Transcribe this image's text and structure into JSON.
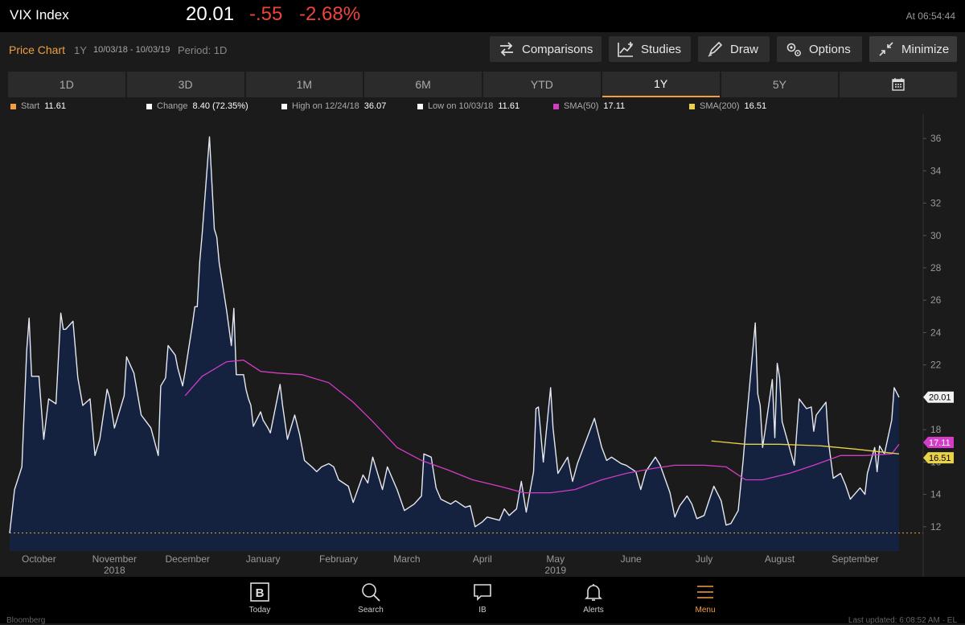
{
  "header": {
    "title": "VIX Index",
    "price": "20.01",
    "change": "-.55",
    "change_pct": "-2.68%",
    "time": "At 06:54:44"
  },
  "subheader": {
    "label": "Price Chart",
    "range": "1Y",
    "dates": "10/03/18 - 10/03/19",
    "period": "Period: 1D"
  },
  "toolbar": {
    "comparisons": "Comparisons",
    "studies": "Studies",
    "draw": "Draw",
    "options": "Options",
    "minimize": "Minimize"
  },
  "tabs": [
    "1D",
    "3D",
    "1M",
    "6M",
    "YTD",
    "1Y",
    "5Y"
  ],
  "active_tab": "1Y",
  "legend": {
    "start_label": "Start",
    "start_value": "11.61",
    "change_label": "Change",
    "change_value": "8.40 (72.35%)",
    "high_label": "High on 12/24/18",
    "high_value": "36.07",
    "low_label": "Low on 10/03/18",
    "low_value": "11.61",
    "sma50_label": "SMA(50)",
    "sma50_value": "17.11",
    "sma200_label": "SMA(200)",
    "sma200_value": "16.51"
  },
  "colors": {
    "accent": "#f39f41",
    "negative": "#f0443a",
    "area_fill": "#14213f",
    "price_line": "#e6e9f0",
    "sma50": "#d23cc6",
    "sma200": "#e9d14a"
  },
  "nav": {
    "today": "Today",
    "search": "Search",
    "ib": "IB",
    "alerts": "Alerts",
    "menu": "Menu"
  },
  "footer": {
    "left": "Bloomberg",
    "right": "Last updated: 6:08:52 AM · EL"
  },
  "chart_data": {
    "type": "area",
    "title": "VIX Index",
    "ylim": [
      10.5,
      37
    ],
    "y_ticks": [
      12,
      14,
      16,
      18,
      20,
      22,
      24,
      26,
      28,
      30,
      32,
      34,
      36
    ],
    "x_range": [
      "2018-10-03",
      "2019-10-03"
    ],
    "x_ticks": [
      {
        "date": "2018-10-15",
        "label": "October",
        "year": ""
      },
      {
        "date": "2018-11-15",
        "label": "November",
        "year": "2018"
      },
      {
        "date": "2018-12-15",
        "label": "December",
        "year": ""
      },
      {
        "date": "2019-01-15",
        "label": "January",
        "year": ""
      },
      {
        "date": "2019-02-15",
        "label": "February",
        "year": ""
      },
      {
        "date": "2019-03-15",
        "label": "March",
        "year": ""
      },
      {
        "date": "2019-04-15",
        "label": "April",
        "year": ""
      },
      {
        "date": "2019-05-15",
        "label": "May",
        "year": "2019"
      },
      {
        "date": "2019-06-15",
        "label": "June",
        "year": ""
      },
      {
        "date": "2019-07-15",
        "label": "July",
        "year": ""
      },
      {
        "date": "2019-08-15",
        "label": "August",
        "year": ""
      },
      {
        "date": "2019-09-15",
        "label": "September",
        "year": ""
      }
    ],
    "reference_line": {
      "value": 11.61
    },
    "last_value_labels": {
      "price": "20.01",
      "sma50": "17.11",
      "sma200": "16.51"
    },
    "series": [
      {
        "type": "area",
        "points": [
          [
            "2018-10-03",
            11.6
          ],
          [
            "2018-10-05",
            14.3
          ],
          [
            "2018-10-08",
            15.7
          ],
          [
            "2018-10-10",
            22.9
          ],
          [
            "2018-10-11",
            24.9
          ],
          [
            "2018-10-12",
            21.3
          ],
          [
            "2018-10-15",
            21.3
          ],
          [
            "2018-10-17",
            17.4
          ],
          [
            "2018-10-19",
            19.9
          ],
          [
            "2018-10-22",
            19.6
          ],
          [
            "2018-10-24",
            25.2
          ],
          [
            "2018-10-25",
            24.2
          ],
          [
            "2018-10-26",
            24.2
          ],
          [
            "2018-10-29",
            24.7
          ],
          [
            "2018-10-31",
            21.2
          ],
          [
            "2018-11-02",
            19.5
          ],
          [
            "2018-11-05",
            19.9
          ],
          [
            "2018-11-07",
            16.4
          ],
          [
            "2018-11-09",
            17.4
          ],
          [
            "2018-11-12",
            20.5
          ],
          [
            "2018-11-13",
            20.0
          ],
          [
            "2018-11-15",
            18.1
          ],
          [
            "2018-11-19",
            20.1
          ],
          [
            "2018-11-20",
            22.5
          ],
          [
            "2018-11-23",
            21.5
          ],
          [
            "2018-11-26",
            18.9
          ],
          [
            "2018-11-28",
            18.5
          ],
          [
            "2018-11-30",
            18.1
          ],
          [
            "2018-12-03",
            16.4
          ],
          [
            "2018-12-04",
            20.7
          ],
          [
            "2018-12-06",
            21.2
          ],
          [
            "2018-12-07",
            23.2
          ],
          [
            "2018-12-10",
            22.6
          ],
          [
            "2018-12-11",
            21.8
          ],
          [
            "2018-12-13",
            20.7
          ],
          [
            "2018-12-14",
            21.6
          ],
          [
            "2018-12-17",
            24.5
          ],
          [
            "2018-12-18",
            25.6
          ],
          [
            "2018-12-19",
            25.6
          ],
          [
            "2018-12-20",
            28.4
          ],
          [
            "2018-12-21",
            30.1
          ],
          [
            "2018-12-24",
            36.1
          ],
          [
            "2018-12-26",
            30.4
          ],
          [
            "2018-12-27",
            29.9
          ],
          [
            "2018-12-28",
            28.3
          ],
          [
            "2018-12-31",
            25.4
          ],
          [
            "2019-01-02",
            23.2
          ],
          [
            "2019-01-03",
            25.5
          ],
          [
            "2019-01-04",
            21.4
          ],
          [
            "2019-01-07",
            21.4
          ],
          [
            "2019-01-08",
            20.5
          ],
          [
            "2019-01-09",
            19.9
          ],
          [
            "2019-01-10",
            19.5
          ],
          [
            "2019-01-11",
            18.2
          ],
          [
            "2019-01-14",
            19.1
          ],
          [
            "2019-01-15",
            18.6
          ],
          [
            "2019-01-17",
            18.1
          ],
          [
            "2019-01-18",
            17.8
          ],
          [
            "2019-01-22",
            20.8
          ],
          [
            "2019-01-23",
            19.5
          ],
          [
            "2019-01-25",
            17.4
          ],
          [
            "2019-01-28",
            18.9
          ],
          [
            "2019-01-30",
            17.7
          ],
          [
            "2019-02-01",
            16.1
          ],
          [
            "2019-02-04",
            15.7
          ],
          [
            "2019-02-06",
            15.4
          ],
          [
            "2019-02-08",
            15.7
          ],
          [
            "2019-02-11",
            15.9
          ],
          [
            "2019-02-13",
            15.7
          ],
          [
            "2019-02-15",
            14.9
          ],
          [
            "2019-02-19",
            14.5
          ],
          [
            "2019-02-21",
            13.5
          ],
          [
            "2019-02-25",
            15.2
          ],
          [
            "2019-02-27",
            14.7
          ],
          [
            "2019-03-01",
            16.3
          ],
          [
            "2019-03-05",
            14.3
          ],
          [
            "2019-03-07",
            15.7
          ],
          [
            "2019-03-11",
            14.3
          ],
          [
            "2019-03-14",
            13.0
          ],
          [
            "2019-03-18",
            13.4
          ],
          [
            "2019-03-21",
            13.9
          ],
          [
            "2019-03-22",
            16.5
          ],
          [
            "2019-03-25",
            16.3
          ],
          [
            "2019-03-27",
            14.4
          ],
          [
            "2019-03-29",
            13.7
          ],
          [
            "2019-04-02",
            13.4
          ],
          [
            "2019-04-04",
            13.6
          ],
          [
            "2019-04-08",
            13.2
          ],
          [
            "2019-04-10",
            13.3
          ],
          [
            "2019-04-12",
            12.0
          ],
          [
            "2019-04-15",
            12.3
          ],
          [
            "2019-04-17",
            12.6
          ],
          [
            "2019-04-22",
            12.4
          ],
          [
            "2019-04-24",
            13.1
          ],
          [
            "2019-04-26",
            12.7
          ],
          [
            "2019-04-29",
            13.1
          ],
          [
            "2019-05-01",
            14.8
          ],
          [
            "2019-05-03",
            12.9
          ],
          [
            "2019-05-06",
            15.4
          ],
          [
            "2019-05-07",
            19.3
          ],
          [
            "2019-05-08",
            19.4
          ],
          [
            "2019-05-10",
            16.0
          ],
          [
            "2019-05-13",
            20.6
          ],
          [
            "2019-05-14",
            18.1
          ],
          [
            "2019-05-16",
            15.3
          ],
          [
            "2019-05-20",
            16.3
          ],
          [
            "2019-05-22",
            14.8
          ],
          [
            "2019-05-24",
            15.9
          ],
          [
            "2019-05-28",
            17.5
          ],
          [
            "2019-05-31",
            18.7
          ],
          [
            "2019-06-03",
            16.9
          ],
          [
            "2019-06-05",
            16.1
          ],
          [
            "2019-06-07",
            16.3
          ],
          [
            "2019-06-11",
            15.9
          ],
          [
            "2019-06-13",
            15.8
          ],
          [
            "2019-06-17",
            15.4
          ],
          [
            "2019-06-19",
            14.3
          ],
          [
            "2019-06-21",
            15.4
          ],
          [
            "2019-06-25",
            16.3
          ],
          [
            "2019-06-27",
            15.8
          ],
          [
            "2019-07-01",
            14.1
          ],
          [
            "2019-07-03",
            12.6
          ],
          [
            "2019-07-05",
            13.3
          ],
          [
            "2019-07-08",
            13.9
          ],
          [
            "2019-07-10",
            13.4
          ],
          [
            "2019-07-12",
            12.5
          ],
          [
            "2019-07-15",
            12.7
          ],
          [
            "2019-07-17",
            13.6
          ],
          [
            "2019-07-19",
            14.5
          ],
          [
            "2019-07-22",
            13.6
          ],
          [
            "2019-07-24",
            12.1
          ],
          [
            "2019-07-26",
            12.2
          ],
          [
            "2019-07-29",
            13.0
          ],
          [
            "2019-07-31",
            16.1
          ],
          [
            "2019-08-01",
            17.9
          ],
          [
            "2019-08-05",
            24.6
          ],
          [
            "2019-08-06",
            20.2
          ],
          [
            "2019-08-07",
            19.5
          ],
          [
            "2019-08-08",
            16.9
          ],
          [
            "2019-08-09",
            17.9
          ],
          [
            "2019-08-12",
            21.1
          ],
          [
            "2019-08-13",
            17.5
          ],
          [
            "2019-08-14",
            22.1
          ],
          [
            "2019-08-15",
            21.2
          ],
          [
            "2019-08-16",
            18.5
          ],
          [
            "2019-08-19",
            16.9
          ],
          [
            "2019-08-21",
            15.8
          ],
          [
            "2019-08-23",
            19.9
          ],
          [
            "2019-08-26",
            19.3
          ],
          [
            "2019-08-28",
            19.4
          ],
          [
            "2019-08-29",
            17.9
          ],
          [
            "2019-08-30",
            18.9
          ],
          [
            "2019-09-03",
            19.7
          ],
          [
            "2019-09-04",
            17.3
          ],
          [
            "2019-09-06",
            15.0
          ],
          [
            "2019-09-09",
            15.3
          ],
          [
            "2019-09-11",
            14.6
          ],
          [
            "2019-09-13",
            13.7
          ],
          [
            "2019-09-17",
            14.4
          ],
          [
            "2019-09-19",
            14.0
          ],
          [
            "2019-09-20",
            15.3
          ],
          [
            "2019-09-23",
            16.9
          ],
          [
            "2019-09-24",
            15.4
          ],
          [
            "2019-09-25",
            17.0
          ],
          [
            "2019-09-27",
            16.5
          ],
          [
            "2019-09-30",
            18.6
          ],
          [
            "2019-10-01",
            20.6
          ],
          [
            "2019-10-03",
            20.0
          ]
        ]
      },
      {
        "name": "SMA(50)",
        "type": "line",
        "points": [
          [
            "2018-12-14",
            20.1
          ],
          [
            "2018-12-21",
            21.3
          ],
          [
            "2018-12-31",
            22.2
          ],
          [
            "2019-01-07",
            22.3
          ],
          [
            "2019-01-14",
            21.6
          ],
          [
            "2019-01-21",
            21.5
          ],
          [
            "2019-01-31",
            21.4
          ],
          [
            "2019-02-11",
            20.9
          ],
          [
            "2019-02-21",
            19.7
          ],
          [
            "2019-03-01",
            18.5
          ],
          [
            "2019-03-11",
            16.9
          ],
          [
            "2019-03-21",
            16.1
          ],
          [
            "2019-04-01",
            15.5
          ],
          [
            "2019-04-11",
            14.9
          ],
          [
            "2019-04-22",
            14.5
          ],
          [
            "2019-05-02",
            14.1
          ],
          [
            "2019-05-13",
            14.1
          ],
          [
            "2019-05-23",
            14.3
          ],
          [
            "2019-06-03",
            14.9
          ],
          [
            "2019-06-13",
            15.3
          ],
          [
            "2019-06-24",
            15.6
          ],
          [
            "2019-07-03",
            15.8
          ],
          [
            "2019-07-15",
            15.8
          ],
          [
            "2019-07-24",
            15.7
          ],
          [
            "2019-08-01",
            14.9
          ],
          [
            "2019-08-08",
            14.9
          ],
          [
            "2019-08-19",
            15.3
          ],
          [
            "2019-08-29",
            15.8
          ],
          [
            "2019-09-09",
            16.4
          ],
          [
            "2019-09-19",
            16.4
          ],
          [
            "2019-09-30",
            16.5
          ],
          [
            "2019-10-03",
            17.1
          ]
        ]
      },
      {
        "name": "SMA(200)",
        "type": "line",
        "points": [
          [
            "2019-07-18",
            17.3
          ],
          [
            "2019-08-01",
            17.1
          ],
          [
            "2019-08-15",
            17.1
          ],
          [
            "2019-09-01",
            17.0
          ],
          [
            "2019-09-15",
            16.8
          ],
          [
            "2019-10-03",
            16.5
          ]
        ]
      }
    ]
  }
}
